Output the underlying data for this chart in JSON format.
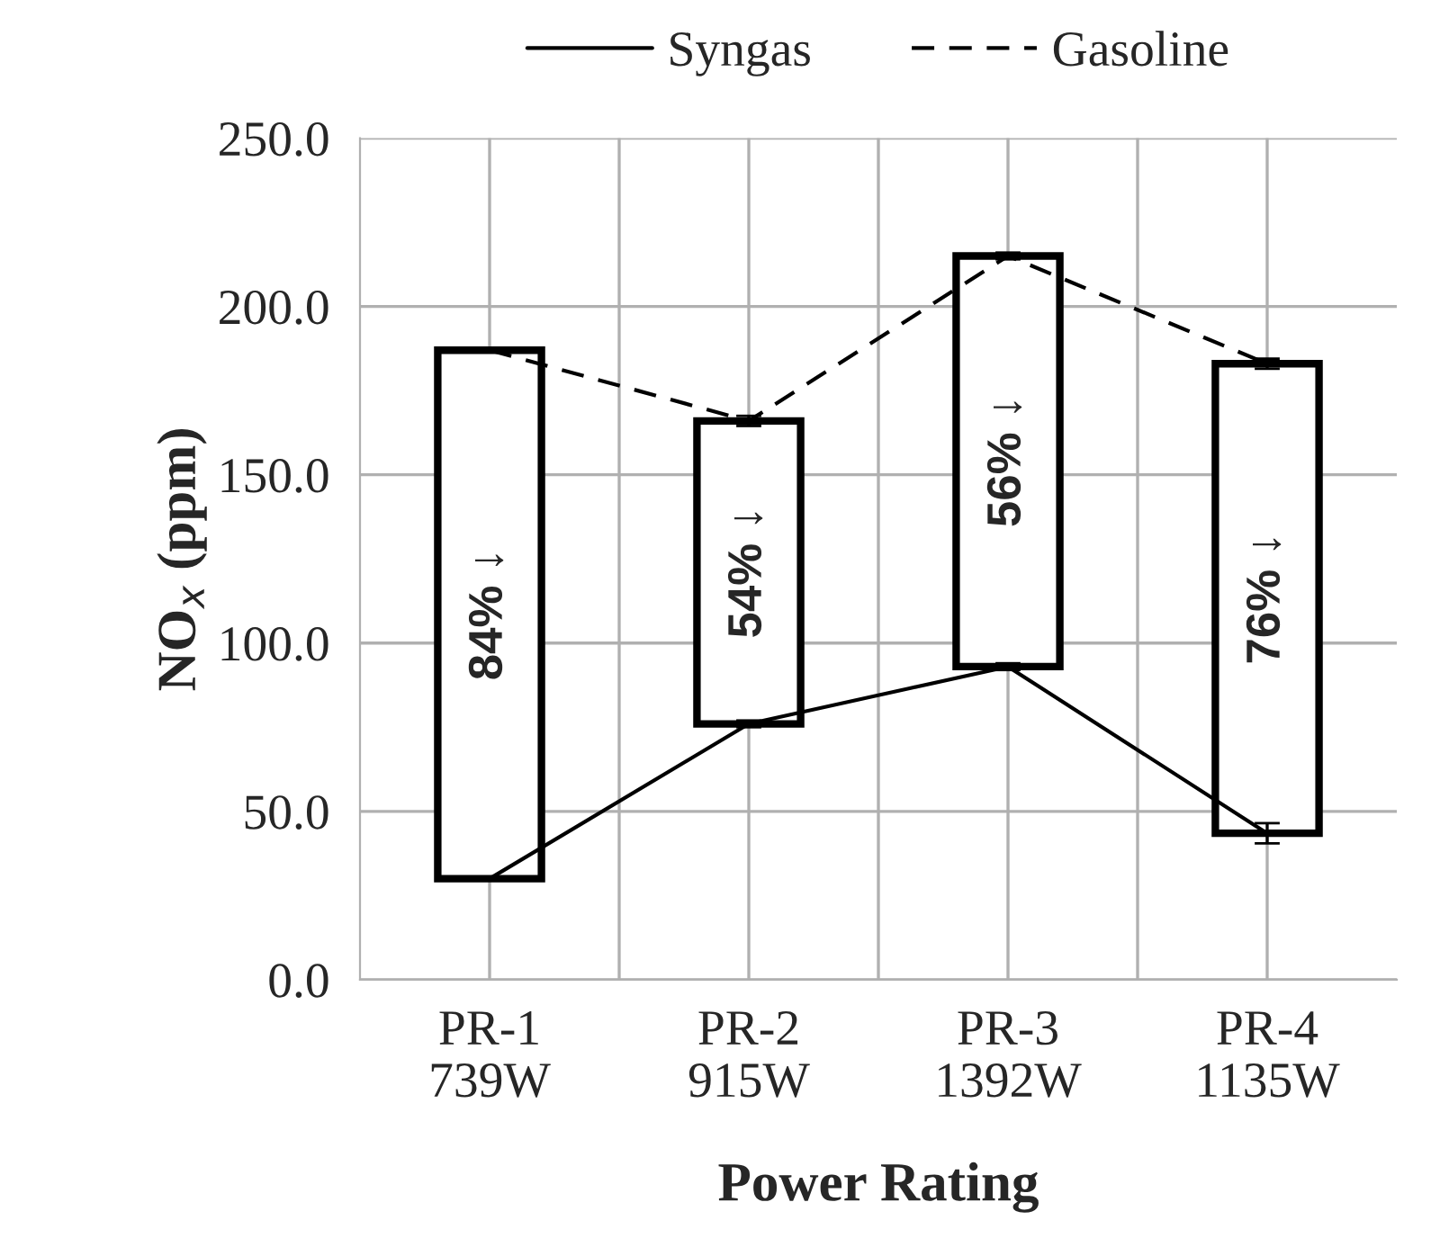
{
  "chart_data": {
    "type": "bar",
    "xlabel": "Power Rating",
    "ylabel": "NO$_{x}$ (ppm)",
    "categories": [
      "PR-1\n739W",
      "PR-2\n915W",
      "PR-3\n1392W",
      "PR-4\n1135W"
    ],
    "series": [
      {
        "color": "#ffffff",
        "base": [
          30,
          76,
          93,
          43.5
        ],
        "values": [
          157,
          90,
          122,
          139.5
        ]
      },
      {
        "type": "line",
        "name": "Syngas",
        "color": "#000000",
        "line_style": "solid",
        "values": [
          30,
          76,
          93,
          43.5
        ],
        "errors": [
          null,
          1,
          1,
          3
        ]
      },
      {
        "type": "line",
        "name": "Gasoline",
        "color": "#000000",
        "line_style": "dashed",
        "values": [
          187,
          166,
          215,
          183
        ],
        "errors": [
          null,
          1.5,
          1,
          1.5
        ]
      }
    ],
    "ylim": [
      0,
      250
    ],
    "yticks": [
      {
        "value": 0,
        "label": "0.0"
      },
      {
        "value": 50,
        "label": "50.0"
      },
      {
        "value": 100,
        "label": "100.0"
      },
      {
        "value": 150,
        "label": "150.0"
      },
      {
        "value": 200,
        "label": "200.0"
      },
      {
        "value": 250,
        "label": "250.0"
      }
    ],
    "grid": true,
    "legend": "top",
    "marker": "none",
    "annotations": [
      "84% ↓",
      "54% ↓",
      "56% ↓",
      "76% ↓"
    ]
  }
}
